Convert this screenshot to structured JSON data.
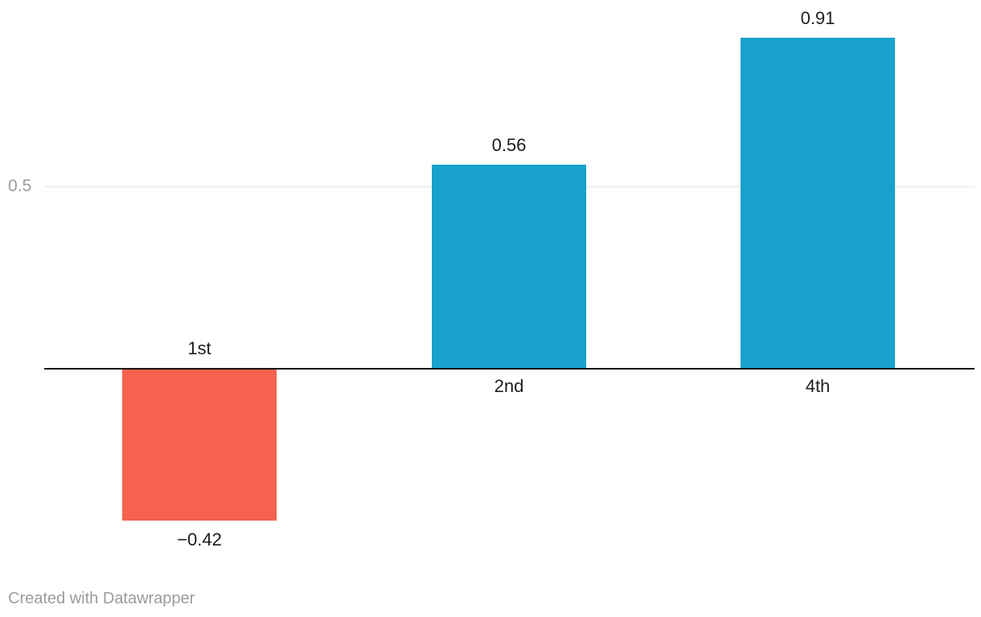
{
  "chart_data": {
    "type": "bar",
    "orientation": "vertical",
    "title": "",
    "xlabel": "",
    "ylabel": "",
    "categories": [
      "1st",
      "2nd",
      "4th"
    ],
    "values": [
      -0.42,
      0.56,
      0.91
    ],
    "value_labels": [
      "−0.42",
      "0.56",
      "0.91"
    ],
    "gridlines": [
      {
        "value": 0.5,
        "label": "0.5"
      }
    ],
    "baseline_value": 0,
    "ylim": [
      -0.45,
      1.0
    ],
    "grid": "horizontal",
    "legend": "none",
    "color_positive": "#18a1cd",
    "color_negative": "#f5624d",
    "gridline_color": "#e3e3e3",
    "baseline_color": "#161616",
    "tick_label_color": "#9c9c9c",
    "label_color": "#1d1d1d"
  },
  "footer": {
    "attribution": "Created with Datawrapper"
  }
}
